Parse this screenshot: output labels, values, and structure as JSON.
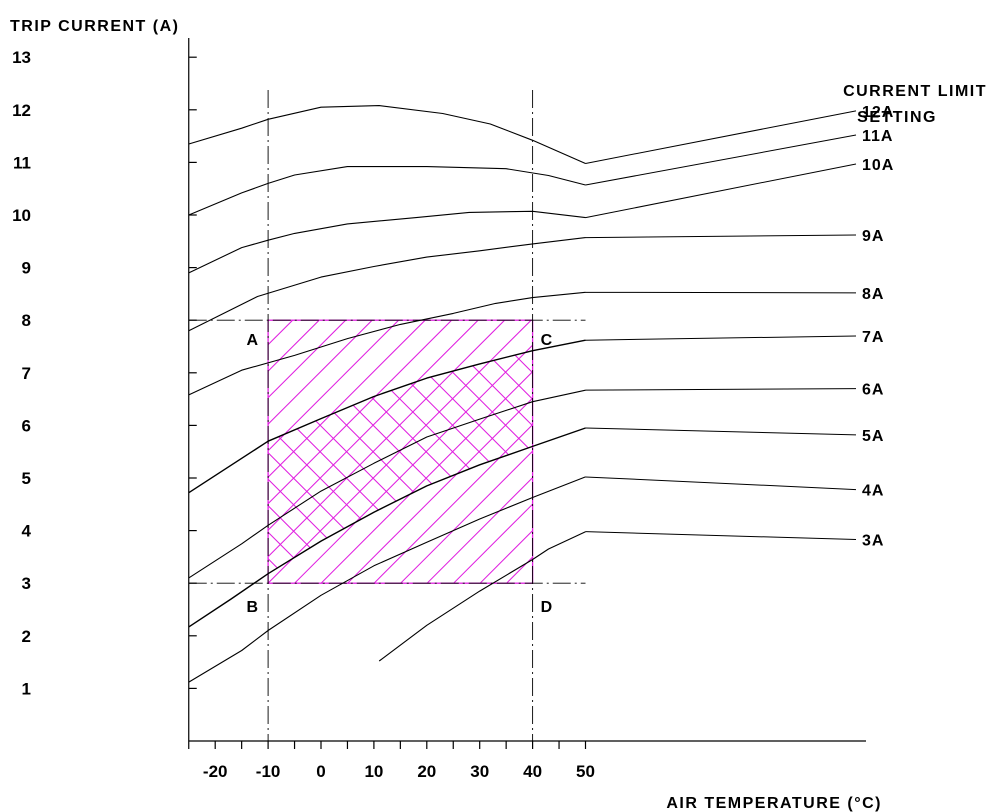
{
  "chart_data": {
    "type": "line",
    "ylabel": "TRIP CURRENT (A)",
    "xlabel": "AIR TEMPERATURE (°C)",
    "legend_title": [
      "CURRENT LIMIT",
      "SETTING"
    ],
    "xlim": [
      -25,
      52
    ],
    "ylim": [
      0,
      13.5
    ],
    "x_ticks": [
      -20,
      -10,
      0,
      10,
      20,
      30,
      40,
      50
    ],
    "y_ticks": [
      1,
      2,
      3,
      4,
      5,
      6,
      7,
      8,
      9,
      10,
      11,
      12,
      13
    ],
    "x_minor_step": 5,
    "series": [
      {
        "name": "12A",
        "points": [
          [
            -25,
            11.35
          ],
          [
            -15,
            11.65
          ],
          [
            -10,
            11.82
          ],
          [
            0,
            12.05
          ],
          [
            11,
            12.08
          ],
          [
            23,
            11.93
          ],
          [
            32,
            11.73
          ],
          [
            40,
            11.42
          ],
          [
            50,
            10.98
          ]
        ]
      },
      {
        "name": "11A",
        "points": [
          [
            -25,
            10.0
          ],
          [
            -15,
            10.42
          ],
          [
            -10,
            10.6
          ],
          [
            -5,
            10.76
          ],
          [
            5,
            10.92
          ],
          [
            20,
            10.92
          ],
          [
            35,
            10.88
          ],
          [
            43,
            10.75
          ],
          [
            50,
            10.57
          ]
        ]
      },
      {
        "name": "10A",
        "points": [
          [
            -25,
            8.9
          ],
          [
            -15,
            9.38
          ],
          [
            -10,
            9.52
          ],
          [
            -5,
            9.65
          ],
          [
            5,
            9.83
          ],
          [
            18,
            9.95
          ],
          [
            28,
            10.05
          ],
          [
            40,
            10.07
          ],
          [
            50,
            9.95
          ]
        ]
      },
      {
        "name": "9A",
        "points": [
          [
            -25,
            7.8
          ],
          [
            -12,
            8.45
          ],
          [
            0,
            8.82
          ],
          [
            10,
            9.02
          ],
          [
            20,
            9.2
          ],
          [
            30,
            9.32
          ],
          [
            40,
            9.45
          ],
          [
            50,
            9.57
          ]
        ]
      },
      {
        "name": "8A",
        "points": [
          [
            -25,
            6.58
          ],
          [
            -15,
            7.05
          ],
          [
            -5,
            7.33
          ],
          [
            5,
            7.65
          ],
          [
            15,
            7.92
          ],
          [
            25,
            8.13
          ],
          [
            33,
            8.32
          ],
          [
            40,
            8.43
          ],
          [
            50,
            8.53
          ]
        ]
      },
      {
        "name": "7A",
        "points": [
          [
            -25,
            4.72
          ],
          [
            -10,
            5.7
          ],
          [
            0,
            6.13
          ],
          [
            10,
            6.55
          ],
          [
            20,
            6.9
          ],
          [
            30,
            7.17
          ],
          [
            40,
            7.42
          ],
          [
            50,
            7.62
          ]
        ]
      },
      {
        "name": "6A",
        "points": [
          [
            -25,
            3.1
          ],
          [
            -15,
            3.75
          ],
          [
            -10,
            4.1
          ],
          [
            0,
            4.75
          ],
          [
            10,
            5.28
          ],
          [
            20,
            5.78
          ],
          [
            30,
            6.12
          ],
          [
            40,
            6.45
          ],
          [
            50,
            6.67
          ]
        ]
      },
      {
        "name": "5A",
        "points": [
          [
            -25,
            2.17
          ],
          [
            -17,
            2.7
          ],
          [
            -10,
            3.18
          ],
          [
            0,
            3.8
          ],
          [
            10,
            4.35
          ],
          [
            20,
            4.85
          ],
          [
            30,
            5.25
          ],
          [
            40,
            5.6
          ],
          [
            50,
            5.95
          ]
        ]
      },
      {
        "name": "4A",
        "points": [
          [
            -25,
            1.12
          ],
          [
            -15,
            1.72
          ],
          [
            -10,
            2.1
          ],
          [
            0,
            2.77
          ],
          [
            10,
            3.33
          ],
          [
            20,
            3.78
          ],
          [
            30,
            4.22
          ],
          [
            40,
            4.63
          ],
          [
            50,
            5.02
          ]
        ]
      },
      {
        "name": "3A",
        "points": [
          [
            11,
            1.52
          ],
          [
            20,
            2.2
          ],
          [
            30,
            2.85
          ],
          [
            40,
            3.45
          ],
          [
            43,
            3.65
          ],
          [
            50,
            3.98
          ]
        ]
      }
    ],
    "curve_label_values": [
      11.98,
      11.52,
      10.97,
      9.62,
      8.52,
      7.7,
      6.7,
      5.82,
      4.78,
      3.83
    ],
    "reference_lines": {
      "x": [
        -10,
        40
      ],
      "y": [
        3,
        8
      ]
    },
    "regions": [
      {
        "name": "settable range",
        "pattern": "single-hatch",
        "color": "#e020e0",
        "x": [
          -10,
          40
        ],
        "y": [
          3,
          8
        ]
      },
      {
        "name": "5A-7A band",
        "pattern": "cross-hatch",
        "color": "#e020e0",
        "x": [
          -10,
          40
        ],
        "between": [
          "5A",
          "7A"
        ]
      }
    ],
    "corner_labels": [
      {
        "text": "A",
        "x": -10,
        "y": 8
      },
      {
        "text": "B",
        "x": -10,
        "y": 3
      },
      {
        "text": "C",
        "x": 40,
        "y": 8
      },
      {
        "text": "D",
        "x": 40,
        "y": 3
      }
    ],
    "grid": false
  }
}
